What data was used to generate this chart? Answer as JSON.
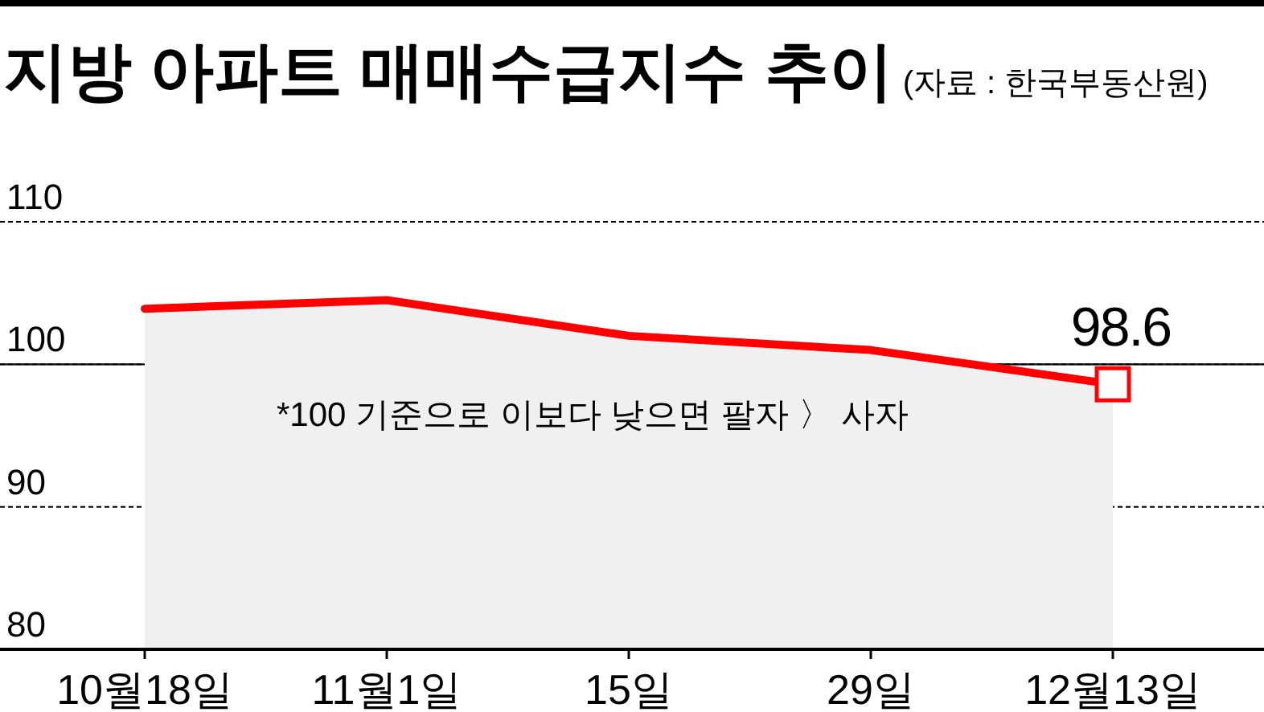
{
  "chart_data": {
    "type": "area",
    "title": "지방 아파트 매매수급지수 추이",
    "subtitle": "(자료 : 한국부동산원)",
    "categories": [
      "10월18일",
      "11월1일",
      "15일",
      "29일",
      "12월13일"
    ],
    "series": [
      {
        "color": "#ff0000",
        "values": [
          103.9,
          104.5,
          102.0,
          101.0,
          98.6
        ],
        "value_labels": [
          null,
          null,
          null,
          null,
          "98.6"
        ]
      }
    ],
    "ylim": [
      80,
      110
    ],
    "yticks": [
      80,
      90,
      100,
      110
    ],
    "grid": "y",
    "marker": "none",
    "line_style": "solid",
    "ref_lines": [
      {
        "axis": "y",
        "value": 100,
        "line_style": "solid",
        "color": "#000000"
      }
    ],
    "annotations": [
      "*100 기준으로 이보다 낮으면 팔자 〉 사자"
    ]
  }
}
